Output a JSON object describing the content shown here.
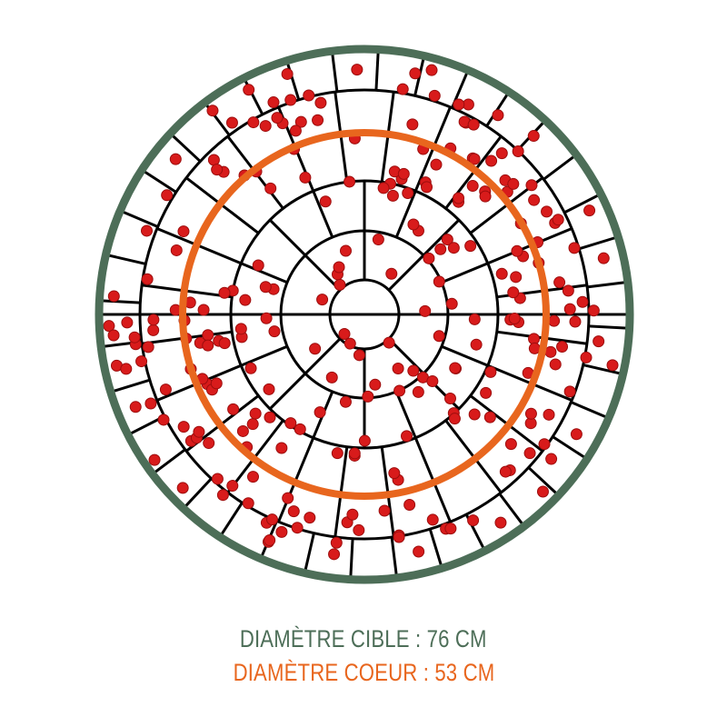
{
  "captions": {
    "target_diameter": "DIAMÈTRE CIBLE : 76 CM",
    "core_diameter": "DIAMÈTRE COEUR : 53 CM"
  },
  "colors": {
    "target_ring": "#4d6e58",
    "core_ring": "#e8661e",
    "grid": "#000000",
    "hit_dot": "#d81b1b",
    "hit_dot_border": "#9c0d0d"
  }
}
